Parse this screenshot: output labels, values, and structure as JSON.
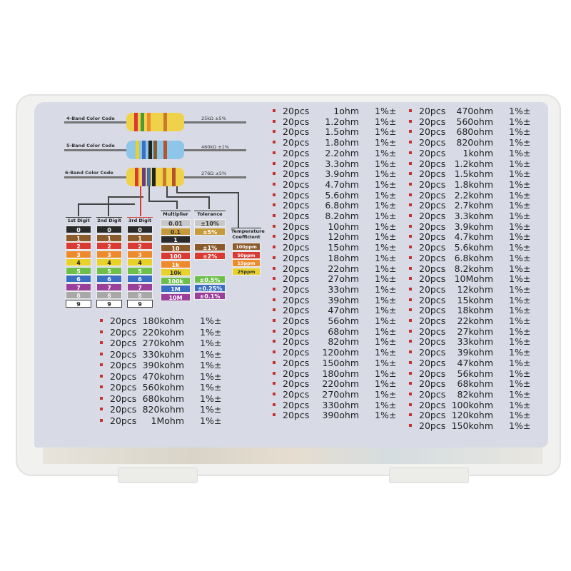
{
  "color_code": {
    "four_band_label": "4-Band Color Code",
    "four_band_value": "25kΩ ±5%",
    "five_band_label": "5-Band Color Code",
    "five_band_value": "460kΩ ±1%",
    "six_band_label": "6-Band Color Code",
    "six_band_value": "276Ω ±5%",
    "digit_headers": [
      "1st Digit",
      "2nd Digit",
      "3rd Digit"
    ],
    "digits": [
      "0",
      "1",
      "2",
      "3",
      "4",
      "5",
      "6",
      "7",
      "8",
      "9"
    ],
    "digit_colors": [
      "#2a2a2a",
      "#8b5a2b",
      "#d93a32",
      "#ef8a2c",
      "#e8d22a",
      "#6cc04a",
      "#3a6fc4",
      "#9a3f9a",
      "#a8a8a8",
      "#ffffff"
    ],
    "multiplier_header": "Multiplier",
    "multipliers": [
      "0.01",
      "0.1",
      "1",
      "10",
      "100",
      "1k",
      "10k",
      "100k",
      "1M",
      "10M"
    ],
    "multiplier_notes": [
      "Silver",
      "Gold"
    ],
    "multiplier_colors": [
      "#c8c8c8",
      "#c69a3a",
      "#2a2a2a",
      "#8b5a2b",
      "#d93a32",
      "#ef8a2c",
      "#e8d22a",
      "#6cc04a",
      "#3a6fc4",
      "#9a3f9a"
    ],
    "tolerance_header": "Tolerance",
    "tolerances": [
      "±10%",
      "±5%",
      "±1%",
      "±2%",
      "±0.5%",
      "±0.25%",
      "±0.1%"
    ],
    "tolerance_notes": [
      "Silver",
      "Gold"
    ],
    "tolerance_colors": [
      "#c8c8c8",
      "#c69a3a",
      "#8b5a2b",
      "#d93a32",
      "#6cc04a",
      "#3a6fc4",
      "#9a3f9a"
    ],
    "temp_header_1": "Temperature",
    "temp_header_2": "Coefficient",
    "temps": [
      "100ppm",
      "50ppm",
      "15ppm",
      "25ppm"
    ],
    "temp_colors": [
      "#8b5a2b",
      "#d93a32",
      "#ef8a2c",
      "#e8d22a"
    ]
  },
  "qty": "20pcs",
  "tol": "1%±",
  "list_mid": [
    "1ohm",
    "1.2ohm",
    "1.5ohm",
    "1.8ohm",
    "2.2ohm",
    "3.3ohm",
    "3.9ohm",
    "4.7ohm",
    "5.6ohm",
    "6.8ohm",
    "8.2ohm",
    "10ohm",
    "12ohm",
    "15ohm",
    "18ohm",
    "22ohm",
    "27ohm",
    "33ohm",
    "39ohm",
    "47ohm",
    "56ohm",
    "68ohm",
    "82ohm",
    "120ohm",
    "150ohm",
    "180ohm",
    "220ohm",
    "270ohm",
    "330ohm",
    "390ohm"
  ],
  "list_right": [
    "470ohm",
    "560ohm",
    "680ohm",
    "820ohm",
    "1kohm",
    "1.2kohm",
    "1.5kohm",
    "1.8kohm",
    "2.2kohm",
    "2.7kohm",
    "3.3kohm",
    "3.9kohm",
    "4.7kohm",
    "5.6kohm",
    "6.8kohm",
    "8.2kohm",
    "10Mohm",
    "12kohm",
    "15kohm",
    "18kohm",
    "22kohm",
    "27kohm",
    "33kohm",
    "39kohm",
    "47kohm",
    "56kohm",
    "68kohm",
    "82kohm",
    "100kohm",
    "120kohm",
    "150kohm"
  ],
  "list_left": [
    "180kohm",
    "220kohm",
    "270kohm",
    "330kohm",
    "390kohm",
    "470kohm",
    "560kohm",
    "680kohm",
    "820kohm",
    "1Mohm"
  ]
}
